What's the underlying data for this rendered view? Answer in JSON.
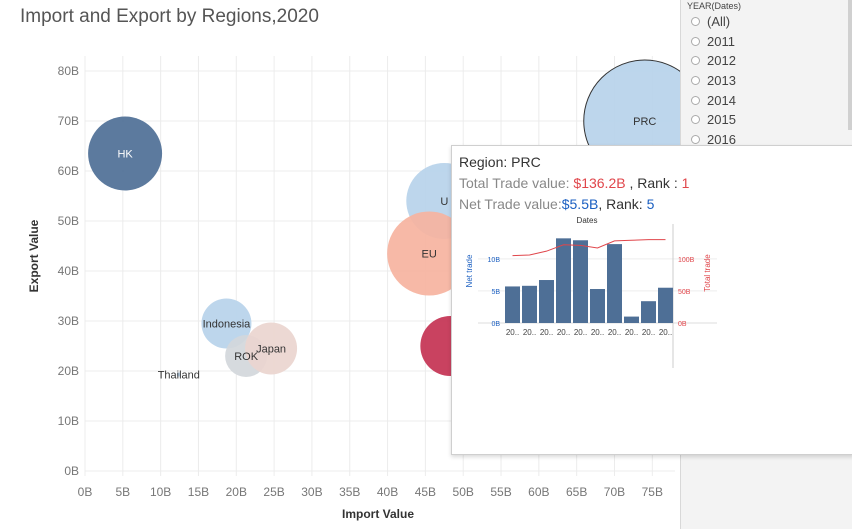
{
  "chart_data": {
    "type": "scatter",
    "title": "Import and Export by Regions,2020",
    "xlabel": "Import Value",
    "ylabel": "Export Value",
    "xlim": [
      0,
      78
    ],
    "ylim": [
      -1,
      83
    ],
    "x_ticks": [
      "0B",
      "5B",
      "10B",
      "15B",
      "20B",
      "25B",
      "30B",
      "35B",
      "40B",
      "45B",
      "50B",
      "55B",
      "60B",
      "65B",
      "70B",
      "75B"
    ],
    "y_ticks": [
      "0B",
      "10B",
      "20B",
      "30B",
      "40B",
      "50B",
      "60B",
      "70B",
      "80B"
    ],
    "grid": true,
    "points": [
      {
        "label": "HK",
        "x": 5.3,
        "y": 63.5,
        "size": 37,
        "color": "#4e6f96",
        "text_color": "#ffffff"
      },
      {
        "label": "PRC",
        "x": 74,
        "y": 70,
        "size": 61,
        "color": "#b7d3ea",
        "text_color": "#333333",
        "outline": "#333333"
      },
      {
        "label": "U",
        "x": 47.5,
        "y": 54,
        "size": 38,
        "color": "#b7d3ea",
        "text_color": "#333333"
      },
      {
        "label": "EU",
        "x": 45.5,
        "y": 43.5,
        "size": 42,
        "color": "#f6b3a0",
        "text_color": "#333333"
      },
      {
        "label": "Indonesia",
        "x": 18.7,
        "y": 29.5,
        "size": 25,
        "color": "#b7d3ea",
        "text_color": "#333333"
      },
      {
        "label": "ROK",
        "x": 21.3,
        "y": 23,
        "size": 21,
        "color": "#d3d7db",
        "text_color": "#333333"
      },
      {
        "label": "Japan",
        "x": 24.6,
        "y": 24.5,
        "size": 26,
        "color": "#ead5cf",
        "text_color": "#333333"
      },
      {
        "label": "Thailand",
        "x": 12.4,
        "y": 19.3,
        "size": 2,
        "color": "#b7d3ea",
        "text_color": "#333333"
      },
      {
        "label": "",
        "x": 48.3,
        "y": 25,
        "size": 30,
        "color": "#c43253",
        "text_color": "#ffffff"
      }
    ]
  },
  "filter": {
    "title": "YEAR(Dates)",
    "options": [
      "(All)",
      "2011",
      "2012",
      "2013",
      "2014",
      "2015",
      "2016"
    ]
  },
  "tooltip": {
    "region_label": "Region:",
    "region_value": "PRC",
    "total_label": "Total Trade value:",
    "total_value": "$136.2B",
    "total_rank_label": ", Rank :",
    "total_rank": "1",
    "net_label": "Net Trade value:",
    "net_value": "$5.5B",
    "net_rank_label": ", Rank:",
    "net_rank": "5",
    "colors": {
      "label": "#888888",
      "value_dark": "#333333",
      "total": "#e0464b",
      "net": "#1b5fc1"
    },
    "mini_chart": {
      "type": "bar",
      "title": "Dates",
      "categories": [
        "20..",
        "20..",
        "20..",
        "20..",
        "20..",
        "20..",
        "20..",
        "20..",
        "20..",
        "20.."
      ],
      "bar_values": [
        5.7,
        5.8,
        6.7,
        13.2,
        12.9,
        5.3,
        12.3,
        1.0,
        3.4,
        5.5
      ],
      "line_values": [
        105,
        106,
        112,
        122,
        121,
        117,
        128,
        129,
        130,
        130
      ],
      "left_ylabel": "Net trade",
      "right_ylabel": "Total trade",
      "left_ticks": [
        "0B",
        "5B",
        "10B"
      ],
      "right_ticks": [
        "0B",
        "50B",
        "100B"
      ],
      "left_ylim": [
        0,
        14.5
      ],
      "right_ylim": [
        0,
        145
      ],
      "bar_color": "#4e6f96",
      "line_color": "#e0464b"
    }
  }
}
